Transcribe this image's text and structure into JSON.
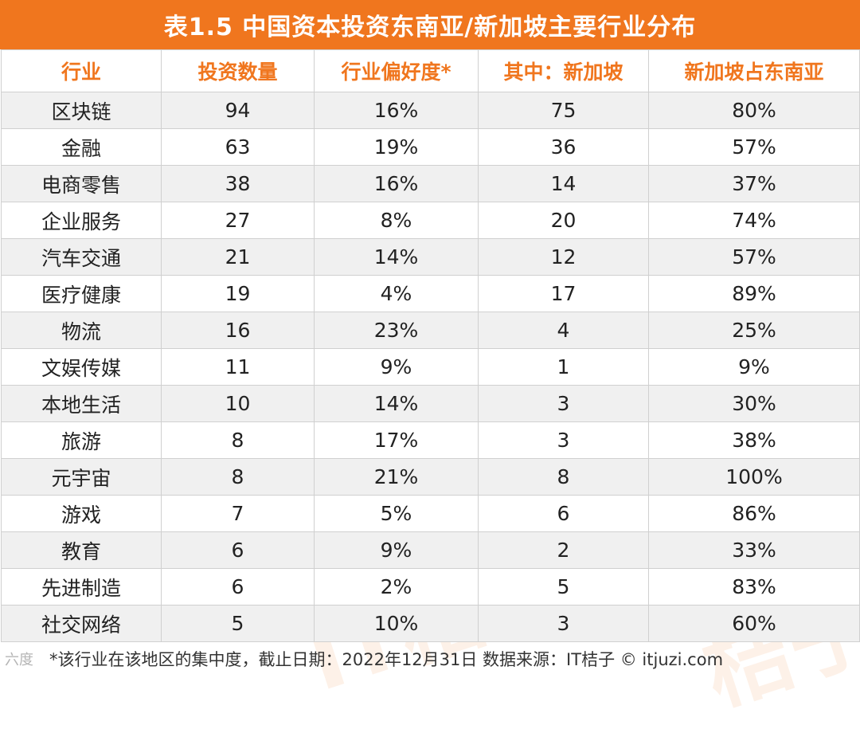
{
  "title": "表1.5  中国资本投资东南亚/新加坡主要行业分布",
  "headers": [
    "行业",
    "投资数量",
    "行业偏好度*",
    "其中：新加坡",
    "新加坡占东南亚"
  ],
  "rows": [
    [
      "区块链",
      "94",
      "16%",
      "75",
      "80%"
    ],
    [
      "金融",
      "63",
      "19%",
      "36",
      "57%"
    ],
    [
      "电商零售",
      "38",
      "16%",
      "14",
      "37%"
    ],
    [
      "企业服务",
      "27",
      "8%",
      "20",
      "74%"
    ],
    [
      "汽车交通",
      "21",
      "14%",
      "12",
      "57%"
    ],
    [
      "医疗健康",
      "19",
      "4%",
      "17",
      "89%"
    ],
    [
      "物流",
      "16",
      "23%",
      "4",
      "25%"
    ],
    [
      "文娱传媒",
      "11",
      "9%",
      "1",
      "9%"
    ],
    [
      "本地生活",
      "10",
      "14%",
      "3",
      "30%"
    ],
    [
      "旅游",
      "8",
      "17%",
      "3",
      "38%"
    ],
    [
      "元宇宙",
      "8",
      "21%",
      "8",
      "100%"
    ],
    [
      "游戏",
      "7",
      "5%",
      "6",
      "86%"
    ],
    [
      "教育",
      "6",
      "9%",
      "2",
      "33%"
    ],
    [
      "先进制造",
      "6",
      "2%",
      "5",
      "83%"
    ],
    [
      "社交网络",
      "5",
      "10%",
      "3",
      "60%"
    ]
  ],
  "footnote": "*该行业在该地区的集中度，截止日期：2022年12月31日    数据来源：IT桔子 © itjuzi.com",
  "watermark_text": "IT桔子",
  "corner_logo_text": "六度",
  "colors": {
    "accent": "#f0761e",
    "row_alt": "#f0f0f0",
    "text": "#222222"
  }
}
